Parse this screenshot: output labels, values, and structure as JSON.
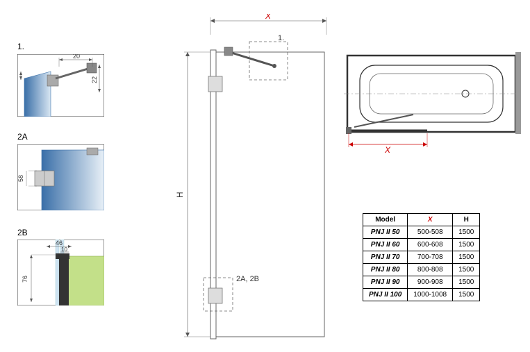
{
  "detail1": {
    "label": "1.",
    "dim_w": "20",
    "dim_h1": "6",
    "dim_h2": "22"
  },
  "detail2a": {
    "label": "2A",
    "dim": "58"
  },
  "detail2b": {
    "label": "2B",
    "dim_w": "46",
    "dim_w2": "10",
    "dim_h": "76"
  },
  "main": {
    "x_label": "X",
    "h_label": "H",
    "ref1": "1.",
    "ref2": "2A, 2B"
  },
  "topview": {
    "x_label": "X"
  },
  "table": {
    "headers": [
      "Model",
      "X",
      "H"
    ],
    "rows": [
      [
        "PNJ II 50",
        "500-508",
        "1500"
      ],
      [
        "PNJ II 60",
        "600-608",
        "1500"
      ],
      [
        "PNJ II 70",
        "700-708",
        "1500"
      ],
      [
        "PNJ II 80",
        "800-808",
        "1500"
      ],
      [
        "PNJ II 90",
        "900-908",
        "1500"
      ],
      [
        "PNJ II 100",
        "1000-1008",
        "1500"
      ]
    ]
  },
  "colors": {
    "glass_blue_dark": "#3a6fa8",
    "glass_blue_light": "#d8e6f2",
    "green_panel": "#c3e089",
    "dim_line": "#555",
    "red": "#c00",
    "border": "#333",
    "gray_fill": "#888",
    "light_gray": "#ccc",
    "dash": "#666"
  }
}
